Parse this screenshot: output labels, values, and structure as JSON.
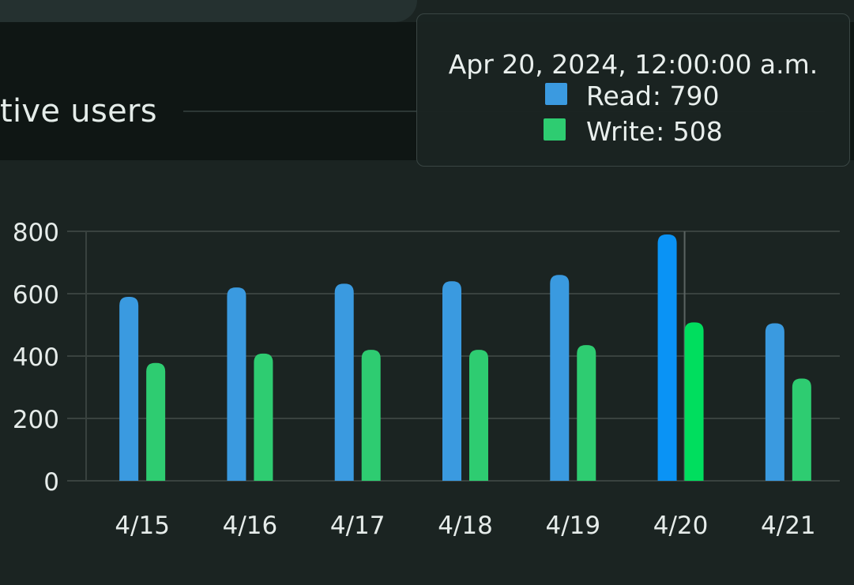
{
  "header": {
    "title_visible": "tive users"
  },
  "tooltip": {
    "title": "Apr 20, 2024, 12:00:00 a.m.",
    "items": [
      {
        "label": "Read",
        "value": "790",
        "color": "#3b9ae0"
      },
      {
        "label": "Write",
        "value": "508",
        "color": "#2ecc71"
      }
    ]
  },
  "colors": {
    "read": "#3a9ae0",
    "read_active": "#0a93f5",
    "write": "#2ecc71",
    "write_active": "#00de5e",
    "grid": "#39423f",
    "axis_text": "#e6ecea"
  },
  "chart_data": {
    "type": "bar",
    "categories": [
      "4/15",
      "4/16",
      "4/17",
      "4/18",
      "4/19",
      "4/20",
      "4/21"
    ],
    "series": [
      {
        "name": "Read",
        "values": [
          590,
          620,
          632,
          640,
          660,
          790,
          505
        ]
      },
      {
        "name": "Write",
        "values": [
          378,
          408,
          420,
          420,
          435,
          508,
          328
        ]
      }
    ],
    "y_ticks": [
      "0",
      "200",
      "400",
      "600",
      "800"
    ],
    "ylim": [
      0,
      800
    ],
    "grid": true,
    "highlighted_category": "4/20"
  }
}
